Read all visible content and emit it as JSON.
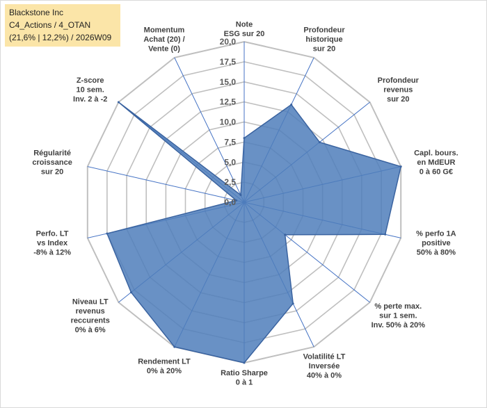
{
  "header": {
    "line1": "Blackstone Inc",
    "line2": "C4_Actions / 4_OTAN",
    "line3": "(21,6% | 12,2%) / 2026W09"
  },
  "colors": {
    "fill": "#4f7ebb",
    "stroke": "#3a63a0",
    "grid": "#bfbfbf",
    "spoke": "#4472c4",
    "title_bg": "#fbe5a8"
  },
  "chart_data": {
    "type": "radar",
    "range": [
      0,
      20
    ],
    "ticks": [
      "0,0",
      "2,5",
      "5,0",
      "7,5",
      "10,0",
      "12,5",
      "15,0",
      "17,5",
      "20,0"
    ],
    "axes": [
      {
        "label": [
          "Note",
          "ESG sur 20"
        ],
        "value": 8
      },
      {
        "label": [
          "Profondeur",
          "historique",
          "sur 20"
        ],
        "value": 13.5
      },
      {
        "label": [
          "Profondeur",
          "revenus",
          "sur 20"
        ],
        "value": 12
      },
      {
        "label": [
          "Capl. bours.",
          "en MdEUR",
          "0 à 60 G€"
        ],
        "value": 20
      },
      {
        "label": [
          "% perfo 1A",
          "positive",
          "50% à 80%"
        ],
        "value": 18
      },
      {
        "label": [
          "% perte max.",
          "sur 1 sem.",
          "Inv. 50% à 20%"
        ],
        "value": 6.5
      },
      {
        "label": [
          "Volatilité LT",
          "Inversée",
          "40% à 0%"
        ],
        "value": 14
      },
      {
        "label": [
          "Ratio Sharpe",
          "0 à 1"
        ],
        "value": 20
      },
      {
        "label": [
          "Rendement LT",
          "0% à 20%"
        ],
        "value": 20
      },
      {
        "label": [
          "Niveau LT",
          "revenus",
          "reccurents",
          "0% à 6%"
        ],
        "value": 18
      },
      {
        "label": [
          "Perfo. LT",
          "vs Index",
          "-8% à 12%"
        ],
        "value": 17.5
      },
      {
        "label": [
          "Régularité",
          "croissance",
          "sur 20"
        ],
        "value": 1
      },
      {
        "label": [
          "Z-score",
          "10 sem.",
          "Inv. 2 à -2"
        ],
        "value": 20
      },
      {
        "label": [
          "Momentum",
          "Achat (20) /",
          "Vente (0)"
        ],
        "value": 1
      }
    ]
  }
}
